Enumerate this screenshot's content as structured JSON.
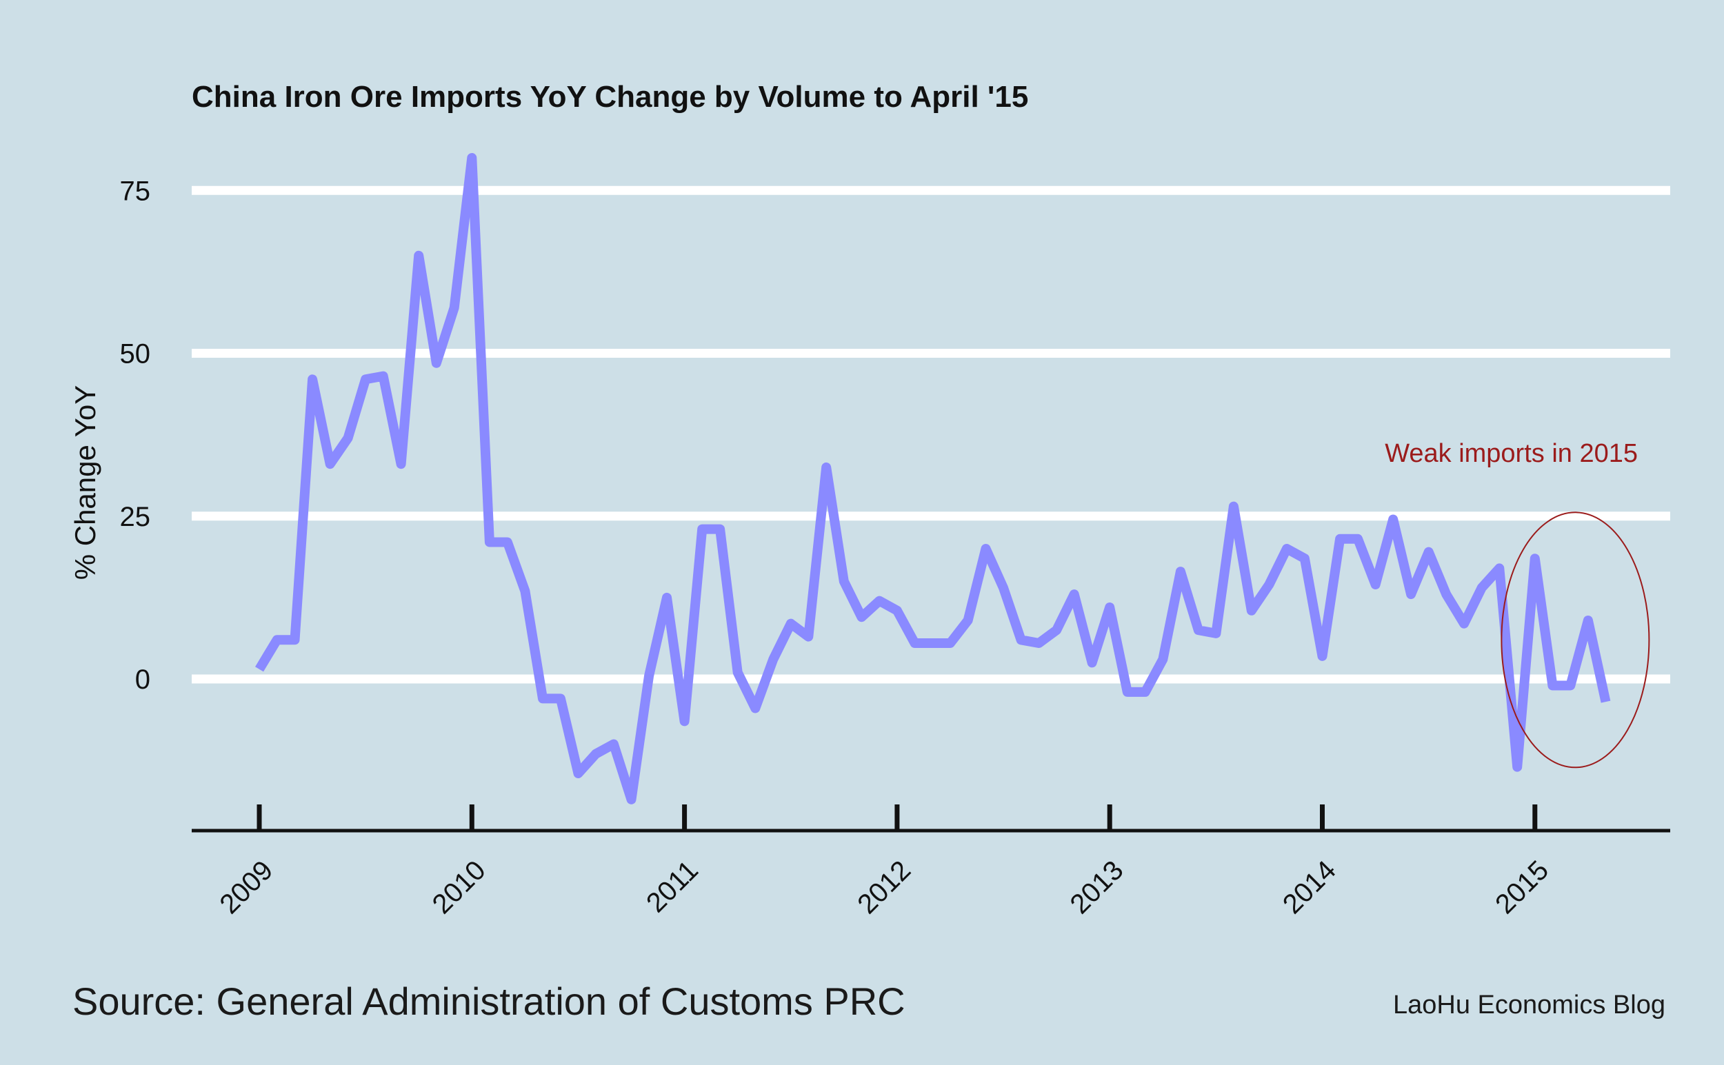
{
  "chart_data": {
    "type": "line",
    "title": "China Iron Ore Imports YoY Change by Volume to April '15",
    "ylabel": "% Change YoY",
    "xlabel": "",
    "ylim": [
      -23,
      80
    ],
    "xlim": [
      2008.67,
      2015.63
    ],
    "yticks": [
      0,
      25,
      50,
      75
    ],
    "xticks": [
      2009,
      2010,
      2011,
      2012,
      2013,
      2014,
      2015
    ],
    "grid": "horizontal",
    "legend": "none",
    "line_color": "#8a8aff",
    "series": [
      {
        "x": [
          2009.0,
          2009.083,
          2009.167,
          2009.25,
          2009.333,
          2009.417,
          2009.5,
          2009.583,
          2009.667,
          2009.75,
          2009.833,
          2009.917,
          2010.0,
          2010.083,
          2010.167,
          2010.25,
          2010.333,
          2010.417,
          2010.5,
          2010.583,
          2010.667,
          2010.75,
          2010.833,
          2010.917,
          2011.0,
          2011.083,
          2011.167,
          2011.25,
          2011.333,
          2011.417,
          2011.5,
          2011.583,
          2011.667,
          2011.75,
          2011.833,
          2011.917,
          2012.0,
          2012.083,
          2012.167,
          2012.25,
          2012.333,
          2012.417,
          2012.5,
          2012.583,
          2012.667,
          2012.75,
          2012.833,
          2012.917,
          2013.0,
          2013.083,
          2013.167,
          2013.25,
          2013.333,
          2013.417,
          2013.5,
          2013.583,
          2013.667,
          2013.75,
          2013.833,
          2013.917,
          2014.0,
          2014.083,
          2014.167,
          2014.25,
          2014.333,
          2014.417,
          2014.5,
          2014.583,
          2014.667,
          2014.75,
          2014.833,
          2014.917,
          2015.0,
          2015.083,
          2015.167,
          2015.25,
          2015.333
        ],
        "values": [
          1.5,
          6,
          6,
          46,
          33,
          37,
          46,
          46.5,
          33,
          65,
          48.5,
          57,
          80,
          21,
          21,
          13.5,
          -3,
          -3,
          -14.5,
          -11.5,
          -10,
          -18.5,
          0.5,
          12.5,
          -6.5,
          23,
          23,
          1,
          -4.5,
          3,
          8.5,
          6.5,
          32.5,
          15,
          9.5,
          12,
          10.5,
          5.5,
          5.5,
          5.5,
          9,
          20,
          14,
          6,
          5.5,
          7.5,
          13,
          2.5,
          11,
          -2,
          -2,
          3,
          16.5,
          7.5,
          7,
          26.5,
          10.5,
          14.5,
          20,
          18.5,
          3.5,
          21.5,
          21.5,
          14.5,
          24.5,
          13,
          19.5,
          13,
          8.5,
          14,
          17,
          -13.5,
          18.5,
          -1,
          -1,
          9,
          -3.5
        ]
      }
    ],
    "annotations": [
      {
        "text": "Weak imports in 2015",
        "anchor": "2015 values",
        "shape": "ellipse",
        "color": "#9b1b1b"
      }
    ]
  },
  "footer": {
    "source": "Source: General Administration of Customs PRC",
    "credit": "LaoHu Economics Blog"
  }
}
